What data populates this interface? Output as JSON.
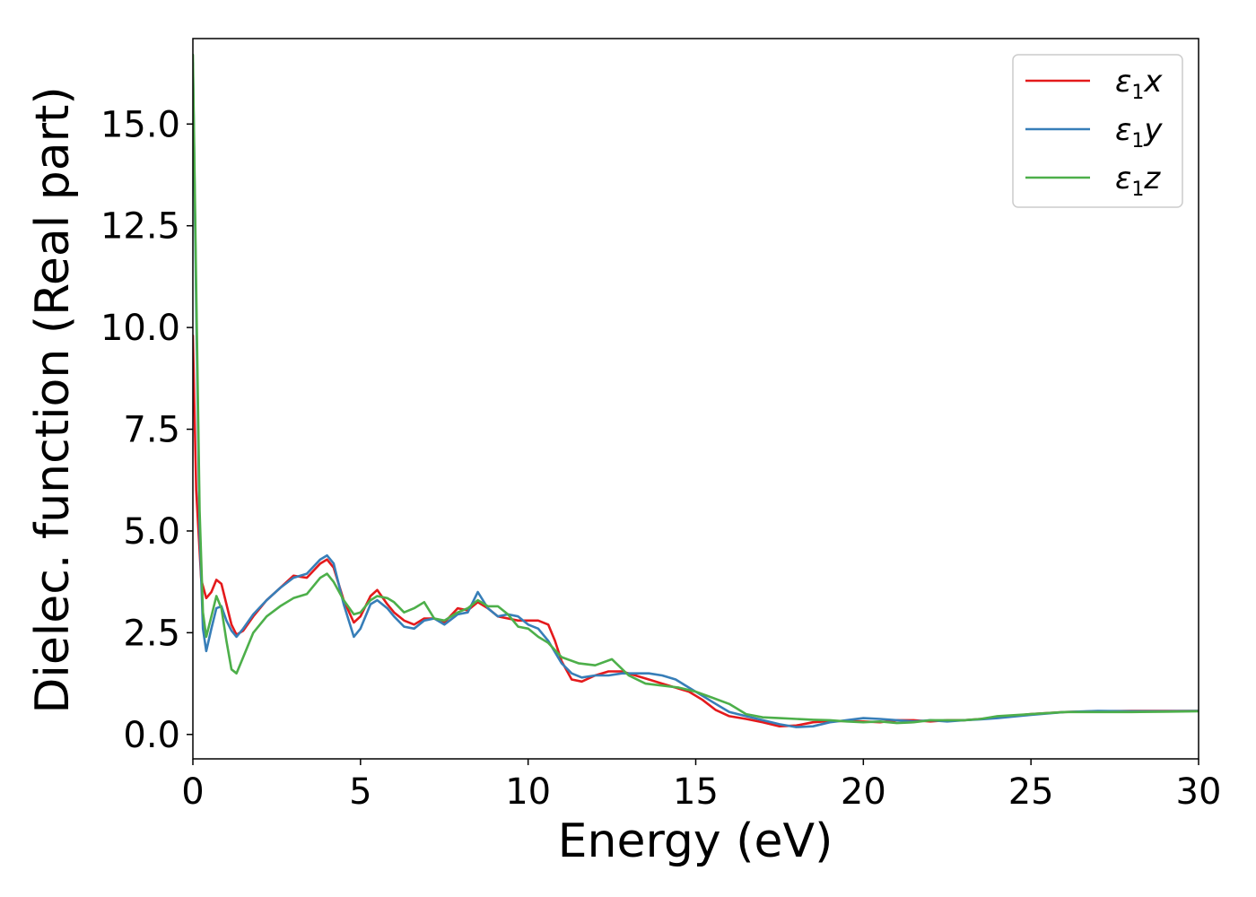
{
  "chart_data": {
    "type": "line",
    "xlabel": "Energy (eV)",
    "ylabel": "Dielec. function (Real part)",
    "xlim": [
      0,
      30
    ],
    "ylim": [
      -0.6,
      17.1
    ],
    "xticks": [
      0,
      5,
      10,
      15,
      20,
      25,
      30
    ],
    "xtick_labels": [
      "0",
      "5",
      "10",
      "15",
      "20",
      "25",
      "30"
    ],
    "yticks": [
      0.0,
      2.5,
      5.0,
      7.5,
      10.0,
      12.5,
      15.0
    ],
    "ytick_labels": [
      "0.0",
      "2.5",
      "5.0",
      "7.5",
      "10.0",
      "12.5",
      "15.0"
    ],
    "grid": false,
    "legend_position": "top-right",
    "series": [
      {
        "name": "ε1x",
        "name_base": "ε",
        "name_sub": "1",
        "name_suffix": "x",
        "color": "#e41a1c",
        "x": [
          0,
          0.1,
          0.25,
          0.4,
          0.55,
          0.7,
          0.85,
          1.0,
          1.15,
          1.3,
          1.5,
          1.8,
          2.2,
          2.6,
          3.0,
          3.4,
          3.8,
          4.0,
          4.2,
          4.5,
          4.8,
          5.0,
          5.3,
          5.5,
          5.8,
          6.0,
          6.3,
          6.6,
          6.9,
          7.2,
          7.5,
          7.9,
          8.2,
          8.5,
          8.8,
          9.1,
          9.4,
          9.7,
          10.0,
          10.3,
          10.6,
          10.8,
          11.0,
          11.3,
          11.6,
          12.0,
          12.4,
          12.8,
          13.2,
          13.6,
          14.0,
          14.4,
          14.8,
          15.2,
          15.6,
          16.0,
          16.5,
          17.0,
          17.5,
          18.0,
          18.5,
          19.0,
          19.5,
          20.0,
          20.5,
          21.0,
          21.5,
          22.0,
          22.5,
          23.0,
          23.5,
          24.0,
          25.0,
          26.0,
          27.0,
          28.0,
          29.0,
          30.0
        ],
        "values": [
          9.8,
          6.0,
          3.8,
          3.35,
          3.5,
          3.8,
          3.7,
          3.2,
          2.7,
          2.45,
          2.55,
          2.9,
          3.3,
          3.6,
          3.9,
          3.85,
          4.2,
          4.3,
          4.1,
          3.3,
          2.75,
          2.9,
          3.4,
          3.55,
          3.2,
          3.0,
          2.8,
          2.7,
          2.85,
          2.85,
          2.75,
          3.1,
          3.05,
          3.25,
          3.1,
          2.9,
          2.85,
          2.8,
          2.8,
          2.8,
          2.7,
          2.3,
          1.8,
          1.35,
          1.3,
          1.45,
          1.55,
          1.55,
          1.45,
          1.35,
          1.25,
          1.15,
          1.05,
          0.85,
          0.6,
          0.45,
          0.38,
          0.3,
          0.2,
          0.22,
          0.3,
          0.33,
          0.33,
          0.32,
          0.3,
          0.35,
          0.35,
          0.32,
          0.35,
          0.35,
          0.38,
          0.42,
          0.5,
          0.55,
          0.57,
          0.58,
          0.58,
          0.58
        ]
      },
      {
        "name": "ε1y",
        "name_base": "ε",
        "name_sub": "1",
        "name_suffix": "y",
        "color": "#377eb8",
        "x": [
          0,
          0.1,
          0.2,
          0.3,
          0.4,
          0.55,
          0.7,
          0.85,
          1.0,
          1.15,
          1.3,
          1.5,
          1.8,
          2.2,
          2.6,
          3.0,
          3.4,
          3.8,
          4.0,
          4.2,
          4.5,
          4.8,
          5.0,
          5.3,
          5.5,
          5.8,
          6.0,
          6.3,
          6.6,
          6.9,
          7.2,
          7.5,
          7.9,
          8.2,
          8.5,
          8.8,
          9.1,
          9.4,
          9.7,
          10.0,
          10.3,
          10.6,
          11.0,
          11.3,
          11.6,
          12.0,
          12.4,
          12.8,
          13.2,
          13.6,
          14.0,
          14.4,
          14.8,
          15.2,
          15.6,
          16.0,
          16.5,
          17.0,
          17.5,
          18.0,
          18.5,
          19.0,
          19.5,
          20.0,
          20.5,
          21.0,
          21.5,
          22.0,
          22.5,
          23.0,
          23.5,
          24.0,
          25.0,
          26.0,
          27.0,
          28.0,
          29.0,
          30.0
        ],
        "values": [
          16.5,
          10.5,
          5.0,
          2.6,
          2.05,
          2.6,
          3.1,
          3.15,
          2.8,
          2.55,
          2.4,
          2.6,
          2.95,
          3.3,
          3.6,
          3.85,
          3.95,
          4.3,
          4.4,
          4.2,
          3.2,
          2.4,
          2.6,
          3.2,
          3.3,
          3.1,
          2.9,
          2.65,
          2.6,
          2.8,
          2.85,
          2.7,
          2.95,
          3.0,
          3.5,
          3.1,
          2.9,
          2.95,
          2.9,
          2.7,
          2.6,
          2.3,
          1.75,
          1.5,
          1.4,
          1.45,
          1.45,
          1.5,
          1.5,
          1.5,
          1.45,
          1.35,
          1.15,
          0.95,
          0.75,
          0.55,
          0.45,
          0.35,
          0.25,
          0.18,
          0.2,
          0.3,
          0.35,
          0.4,
          0.38,
          0.35,
          0.32,
          0.35,
          0.32,
          0.35,
          0.37,
          0.4,
          0.48,
          0.55,
          0.58,
          0.57,
          0.57,
          0.58
        ]
      },
      {
        "name": "ε1z",
        "name_base": "ε",
        "name_sub": "1",
        "name_suffix": "z",
        "color": "#4daf4a",
        "x": [
          0,
          0.1,
          0.2,
          0.3,
          0.4,
          0.55,
          0.7,
          0.85,
          1.0,
          1.15,
          1.3,
          1.5,
          1.8,
          2.2,
          2.6,
          3.0,
          3.4,
          3.8,
          4.0,
          4.2,
          4.5,
          4.8,
          5.0,
          5.3,
          5.5,
          5.8,
          6.0,
          6.3,
          6.6,
          6.9,
          7.2,
          7.5,
          7.9,
          8.2,
          8.5,
          8.8,
          9.1,
          9.4,
          9.7,
          10.0,
          10.3,
          10.6,
          11.0,
          11.5,
          12.0,
          12.5,
          13.0,
          13.5,
          14.0,
          14.5,
          15.0,
          15.5,
          16.0,
          16.5,
          17.0,
          17.5,
          18.0,
          18.5,
          19.0,
          19.5,
          20.0,
          20.5,
          21.0,
          21.5,
          22.0,
          22.5,
          23.0,
          23.5,
          24.0,
          25.0,
          26.0,
          27.0,
          28.0,
          29.0,
          30.0
        ],
        "values": [
          16.7,
          11.0,
          5.5,
          3.0,
          2.4,
          2.9,
          3.4,
          3.1,
          2.3,
          1.6,
          1.5,
          1.9,
          2.5,
          2.9,
          3.15,
          3.35,
          3.45,
          3.85,
          3.95,
          3.75,
          3.3,
          2.95,
          3.0,
          3.3,
          3.4,
          3.35,
          3.25,
          3.0,
          3.1,
          3.25,
          2.85,
          2.8,
          3.0,
          3.1,
          3.3,
          3.15,
          3.15,
          2.95,
          2.65,
          2.6,
          2.4,
          2.25,
          1.9,
          1.75,
          1.7,
          1.85,
          1.45,
          1.25,
          1.2,
          1.15,
          1.05,
          0.9,
          0.75,
          0.5,
          0.42,
          0.4,
          0.38,
          0.36,
          0.35,
          0.32,
          0.3,
          0.32,
          0.28,
          0.3,
          0.35,
          0.35,
          0.35,
          0.38,
          0.45,
          0.5,
          0.55,
          0.55,
          0.55,
          0.56,
          0.57
        ]
      }
    ]
  }
}
